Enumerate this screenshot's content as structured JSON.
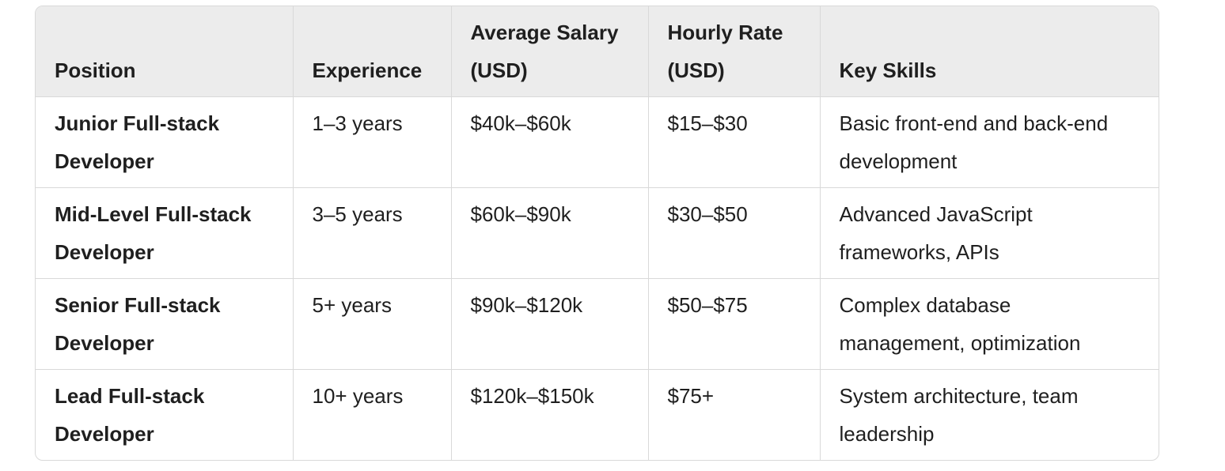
{
  "table": {
    "headers": [
      "Position",
      "Experience",
      "Average Salary (USD)",
      "Hourly Rate (USD)",
      "Key Skills"
    ],
    "rows": [
      {
        "position": "Junior Full-stack Developer",
        "experience": "1–3 years",
        "salary": "$40k–$60k",
        "hourly": "$15–$30",
        "skills": "Basic front-end and back-end development"
      },
      {
        "position": "Mid-Level Full-stack Developer",
        "experience": "3–5 years",
        "salary": "$60k–$90k",
        "hourly": "$30–$50",
        "skills": "Advanced JavaScript frameworks, APIs"
      },
      {
        "position": "Senior Full-stack Developer",
        "experience": "5+ years",
        "salary": "$90k–$120k",
        "hourly": "$50–$75",
        "skills": "Complex database management, optimization"
      },
      {
        "position": "Lead Full-stack Developer",
        "experience": "10+ years",
        "salary": "$120k–$150k",
        "hourly": "$75+",
        "skills": "System architecture, team leadership"
      }
    ]
  }
}
